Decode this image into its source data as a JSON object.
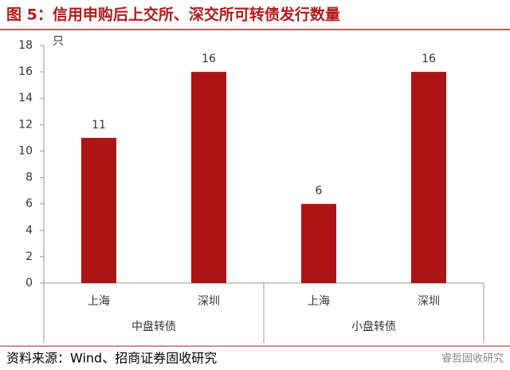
{
  "chart_data": {
    "type": "bar",
    "title": "图 5：信用申购后上交所、深交所可转债发行数量",
    "y_unit": "只",
    "groups": [
      {
        "name": "中盘转债",
        "categories": [
          "上海",
          "深圳"
        ],
        "values": [
          11,
          16
        ]
      },
      {
        "name": "小盘转债",
        "categories": [
          "上海",
          "深圳"
        ],
        "values": [
          6,
          16
        ]
      }
    ],
    "color": "#ad1515",
    "ylim": [
      0,
      18
    ],
    "yticks": [
      0,
      2,
      4,
      6,
      8,
      10,
      12,
      14,
      16,
      18
    ],
    "source": "资料来源：Wind、招商证券固收研究",
    "watermark": "睿哲固收研究"
  }
}
